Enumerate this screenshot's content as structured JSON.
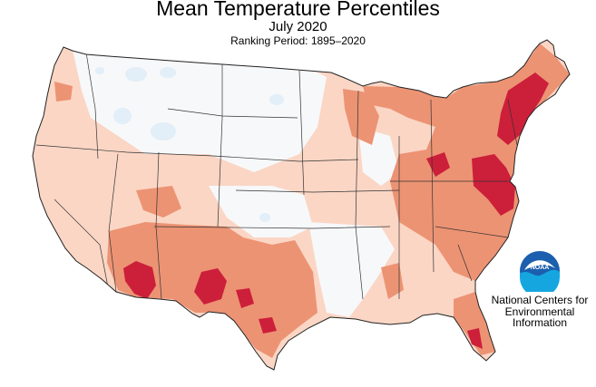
{
  "title": "Mean Temperature Percentiles",
  "period": "July 2020",
  "ranking_period": "Ranking Period: 1895–2020",
  "legend_colors": {
    "below_normal": "#e2eef8",
    "near_normal": "#f5f7f9",
    "above_normal": "#fbd6c5",
    "much_above_normal": "#ec9374",
    "record_warmest": "#cc1f3a"
  },
  "logo": {
    "text": "NOAA",
    "icon": "noaa-logo-icon",
    "colors": {
      "sky": "#1b5fae",
      "water": "#15a6e0",
      "bird": "#ffffff"
    }
  },
  "agency": {
    "line1": "National Centers for",
    "line2": "Environmental",
    "line3": "Information"
  }
}
